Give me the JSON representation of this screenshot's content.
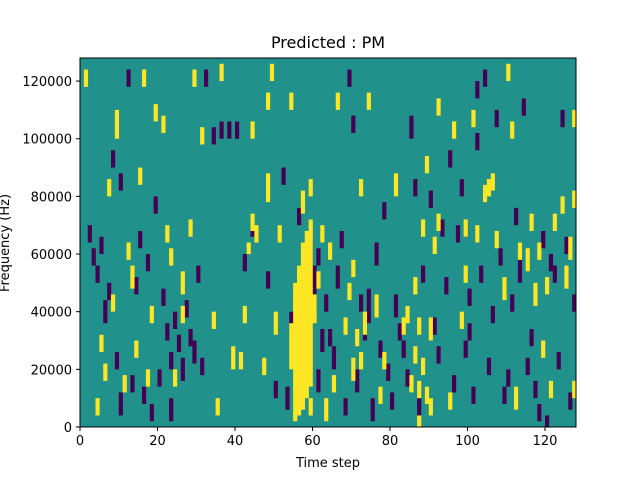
{
  "chart_data": {
    "type": "heatmap",
    "title": "Predicted : PM",
    "xlabel": "Time step",
    "ylabel": "Frequency (Hz)",
    "xlim": [
      0,
      128
    ],
    "ylim": [
      0,
      128000
    ],
    "x_ticks": [
      0,
      20,
      40,
      60,
      80,
      100,
      120
    ],
    "x_tick_labels": [
      "0",
      "20",
      "40",
      "60",
      "80",
      "100",
      "120"
    ],
    "y_ticks": [
      0,
      20000,
      40000,
      60000,
      80000,
      100000,
      120000
    ],
    "y_tick_labels": [
      "0",
      "20000",
      "40000",
      "60000",
      "80000",
      "100000",
      "120000"
    ],
    "grid": false,
    "legend": "none",
    "colors": {
      "background_value": "#21918c",
      "low_value": "#440154",
      "high_value": "#fde725"
    },
    "high_cells": [
      [
        1,
        118000,
        124000
      ],
      [
        4,
        4000,
        10000
      ],
      [
        5,
        26000,
        32000
      ],
      [
        6,
        16000,
        22000
      ],
      [
        7,
        80000,
        86000
      ],
      [
        8,
        40000,
        46000
      ],
      [
        9,
        100000,
        110000
      ],
      [
        11,
        12000,
        18000
      ],
      [
        12,
        58000,
        64000
      ],
      [
        13,
        48000,
        56000
      ],
      [
        14,
        24000,
        30000
      ],
      [
        15,
        84000,
        90000
      ],
      [
        16,
        118000,
        124000
      ],
      [
        17,
        14000,
        20000
      ],
      [
        18,
        36000,
        42000
      ],
      [
        19,
        106000,
        112000
      ],
      [
        21,
        102000,
        108000
      ],
      [
        22,
        64000,
        70000
      ],
      [
        23,
        56000,
        62000
      ],
      [
        24,
        14000,
        20000
      ],
      [
        26,
        36000,
        42000
      ],
      [
        26,
        46000,
        54000
      ],
      [
        28,
        66000,
        72000
      ],
      [
        29,
        118000,
        124000
      ],
      [
        31,
        98000,
        104000
      ],
      [
        34,
        34000,
        40000
      ],
      [
        35,
        4000,
        10000
      ],
      [
        36,
        120000,
        126000
      ],
      [
        39,
        20000,
        28000
      ],
      [
        41,
        20000,
        26000
      ],
      [
        42,
        36000,
        42000
      ],
      [
        43,
        60000,
        64000
      ],
      [
        44,
        100000,
        106000
      ],
      [
        44,
        68000,
        74000
      ],
      [
        45,
        64000,
        70000
      ],
      [
        47,
        18000,
        24000
      ],
      [
        48,
        110000,
        116000
      ],
      [
        48,
        78000,
        88000
      ],
      [
        49,
        120000,
        126000
      ],
      [
        50,
        32000,
        40000
      ],
      [
        51,
        64000,
        70000
      ],
      [
        54,
        110000,
        116000
      ],
      [
        55,
        40000,
        50000
      ],
      [
        56,
        24000,
        32000
      ],
      [
        57,
        16000,
        26000
      ],
      [
        58,
        20000,
        28000
      ],
      [
        59,
        4000,
        10000
      ],
      [
        61,
        48000,
        54000
      ],
      [
        62,
        64000,
        70000
      ],
      [
        63,
        2000,
        10000
      ],
      [
        64,
        58000,
        64000
      ],
      [
        65,
        12000,
        18000
      ],
      [
        66,
        110000,
        116000
      ],
      [
        68,
        32000,
        38000
      ],
      [
        69,
        44000,
        50000
      ],
      [
        70,
        16000,
        24000
      ],
      [
        72,
        80000,
        86000
      ],
      [
        73,
        32000,
        40000
      ],
      [
        74,
        110000,
        116000
      ],
      [
        76,
        38000,
        46000
      ],
      [
        77,
        8000,
        14000
      ],
      [
        78,
        20000,
        26000
      ],
      [
        81,
        80000,
        88000
      ],
      [
        83,
        32000,
        38000
      ],
      [
        84,
        36000,
        42000
      ],
      [
        86,
        46000,
        52000
      ],
      [
        87,
        32000,
        38000
      ],
      [
        88,
        66000,
        72000
      ],
      [
        89,
        88000,
        94000
      ],
      [
        90,
        30000,
        38000
      ],
      [
        91,
        60000,
        66000
      ],
      [
        92,
        68000,
        74000
      ],
      [
        92,
        108000,
        114000
      ],
      [
        95,
        6000,
        12000
      ],
      [
        96,
        100000,
        106000
      ],
      [
        98,
        34000,
        40000
      ],
      [
        99,
        50000,
        56000
      ],
      [
        99,
        66000,
        72000
      ],
      [
        101,
        104000,
        110000
      ],
      [
        102,
        64000,
        70000
      ],
      [
        104,
        78000,
        84000
      ],
      [
        105,
        80000,
        86000
      ],
      [
        106,
        82000,
        88000
      ],
      [
        107,
        62000,
        68000
      ],
      [
        109,
        44000,
        52000
      ],
      [
        110,
        120000,
        126000
      ],
      [
        111,
        100000,
        106000
      ],
      [
        112,
        6000,
        14000
      ],
      [
        113,
        58000,
        64000
      ],
      [
        115,
        54000,
        62000
      ],
      [
        116,
        68000,
        74000
      ],
      [
        117,
        42000,
        50000
      ],
      [
        118,
        58000,
        64000
      ],
      [
        119,
        24000,
        30000
      ],
      [
        120,
        46000,
        52000
      ],
      [
        121,
        10000,
        16000
      ],
      [
        122,
        68000,
        74000
      ],
      [
        124,
        74000,
        80000
      ],
      [
        125,
        48000,
        56000
      ],
      [
        126,
        58000,
        66000
      ],
      [
        127,
        10000,
        16000
      ],
      [
        127,
        104000,
        110000
      ],
      [
        127,
        76000,
        82000
      ],
      [
        56,
        4000,
        56000
      ],
      [
        57,
        6000,
        64000
      ],
      [
        58,
        10000,
        68000
      ],
      [
        59,
        14000,
        72000
      ],
      [
        55,
        2000,
        44000
      ],
      [
        54,
        20000,
        36000
      ],
      [
        57,
        74000,
        82000
      ],
      [
        60,
        36000,
        46000
      ],
      [
        59,
        80000,
        86000
      ],
      [
        87,
        0,
        4000
      ],
      [
        89,
        8000,
        14000
      ],
      [
        86,
        22000,
        28000
      ],
      [
        85,
        12000,
        18000
      ],
      [
        88,
        18000,
        24000
      ],
      [
        90,
        4000,
        10000
      ],
      [
        87,
        10000,
        16000
      ],
      [
        70,
        52000,
        58000
      ],
      [
        71,
        28000,
        34000
      ],
      [
        72,
        20000,
        26000
      ]
    ],
    "low_cells": [
      [
        2,
        64000,
        70000
      ],
      [
        3,
        56000,
        62000
      ],
      [
        4,
        50000,
        56000
      ],
      [
        5,
        60000,
        66000
      ],
      [
        6,
        36000,
        44000
      ],
      [
        7,
        44000,
        50000
      ],
      [
        8,
        90000,
        96000
      ],
      [
        9,
        20000,
        26000
      ],
      [
        10,
        82000,
        88000
      ],
      [
        12,
        118000,
        124000
      ],
      [
        13,
        12000,
        18000
      ],
      [
        14,
        46000,
        52000
      ],
      [
        15,
        62000,
        68000
      ],
      [
        16,
        8000,
        14000
      ],
      [
        17,
        54000,
        60000
      ],
      [
        18,
        2000,
        8000
      ],
      [
        19,
        74000,
        80000
      ],
      [
        20,
        14000,
        20000
      ],
      [
        21,
        42000,
        48000
      ],
      [
        22,
        30000,
        36000
      ],
      [
        23,
        20000,
        26000
      ],
      [
        24,
        34000,
        40000
      ],
      [
        25,
        26000,
        32000
      ],
      [
        26,
        16000,
        24000
      ],
      [
        27,
        38000,
        44000
      ],
      [
        28,
        28000,
        34000
      ],
      [
        29,
        22000,
        30000
      ],
      [
        30,
        50000,
        56000
      ],
      [
        31,
        18000,
        24000
      ],
      [
        32,
        118000,
        124000
      ],
      [
        34,
        98000,
        104000
      ],
      [
        36,
        100000,
        106000
      ],
      [
        38,
        100000,
        106000
      ],
      [
        40,
        100000,
        106000
      ],
      [
        42,
        54000,
        60000
      ],
      [
        44,
        66000,
        72000
      ],
      [
        48,
        48000,
        54000
      ],
      [
        50,
        10000,
        16000
      ],
      [
        52,
        84000,
        90000
      ],
      [
        53,
        6000,
        14000
      ],
      [
        54,
        34000,
        40000
      ],
      [
        56,
        70000,
        76000
      ],
      [
        57,
        12000,
        18000
      ],
      [
        58,
        46000,
        52000
      ],
      [
        59,
        56000,
        64000
      ],
      [
        60,
        48000,
        56000
      ],
      [
        61,
        12000,
        20000
      ],
      [
        62,
        26000,
        34000
      ],
      [
        63,
        40000,
        46000
      ],
      [
        64,
        28000,
        34000
      ],
      [
        65,
        20000,
        28000
      ],
      [
        66,
        48000,
        56000
      ],
      [
        67,
        62000,
        68000
      ],
      [
        68,
        4000,
        10000
      ],
      [
        69,
        118000,
        124000
      ],
      [
        70,
        102000,
        108000
      ],
      [
        71,
        12000,
        20000
      ],
      [
        72,
        40000,
        46000
      ],
      [
        73,
        30000,
        38000
      ],
      [
        74,
        36000,
        48000
      ],
      [
        75,
        2000,
        10000
      ],
      [
        76,
        56000,
        64000
      ],
      [
        77,
        24000,
        30000
      ],
      [
        78,
        72000,
        78000
      ],
      [
        79,
        16000,
        22000
      ],
      [
        80,
        6000,
        12000
      ],
      [
        81,
        38000,
        46000
      ],
      [
        82,
        30000,
        36000
      ],
      [
        83,
        24000,
        30000
      ],
      [
        84,
        14000,
        20000
      ],
      [
        85,
        100000,
        108000
      ],
      [
        86,
        80000,
        86000
      ],
      [
        87,
        4000,
        10000
      ],
      [
        88,
        50000,
        56000
      ],
      [
        90,
        76000,
        82000
      ],
      [
        91,
        32000,
        38000
      ],
      [
        92,
        22000,
        28000
      ],
      [
        93,
        66000,
        72000
      ],
      [
        94,
        46000,
        52000
      ],
      [
        95,
        90000,
        96000
      ],
      [
        96,
        12000,
        18000
      ],
      [
        97,
        64000,
        70000
      ],
      [
        98,
        80000,
        86000
      ],
      [
        99,
        24000,
        30000
      ],
      [
        100,
        30000,
        36000
      ],
      [
        101,
        8000,
        14000
      ],
      [
        102,
        96000,
        102000
      ],
      [
        103,
        50000,
        56000
      ],
      [
        104,
        118000,
        124000
      ],
      [
        105,
        18000,
        24000
      ],
      [
        106,
        36000,
        42000
      ],
      [
        107,
        104000,
        110000
      ],
      [
        108,
        56000,
        62000
      ],
      [
        109,
        8000,
        14000
      ],
      [
        110,
        14000,
        20000
      ],
      [
        111,
        40000,
        46000
      ],
      [
        112,
        70000,
        76000
      ],
      [
        113,
        50000,
        58000
      ],
      [
        114,
        108000,
        114000
      ],
      [
        115,
        18000,
        24000
      ],
      [
        116,
        28000,
        34000
      ],
      [
        117,
        10000,
        16000
      ],
      [
        118,
        2000,
        8000
      ],
      [
        119,
        62000,
        68000
      ],
      [
        120,
        0,
        4000
      ],
      [
        121,
        54000,
        60000
      ],
      [
        122,
        50000,
        56000
      ],
      [
        123,
        20000,
        26000
      ],
      [
        124,
        104000,
        110000
      ],
      [
        125,
        60000,
        66000
      ],
      [
        126,
        6000,
        12000
      ],
      [
        127,
        40000,
        46000
      ],
      [
        23,
        2000,
        10000
      ],
      [
        10,
        4000,
        12000
      ],
      [
        100,
        42000,
        48000
      ],
      [
        102,
        114000,
        120000
      ],
      [
        60,
        40000,
        48000
      ],
      [
        61,
        56000,
        62000
      ]
    ]
  }
}
